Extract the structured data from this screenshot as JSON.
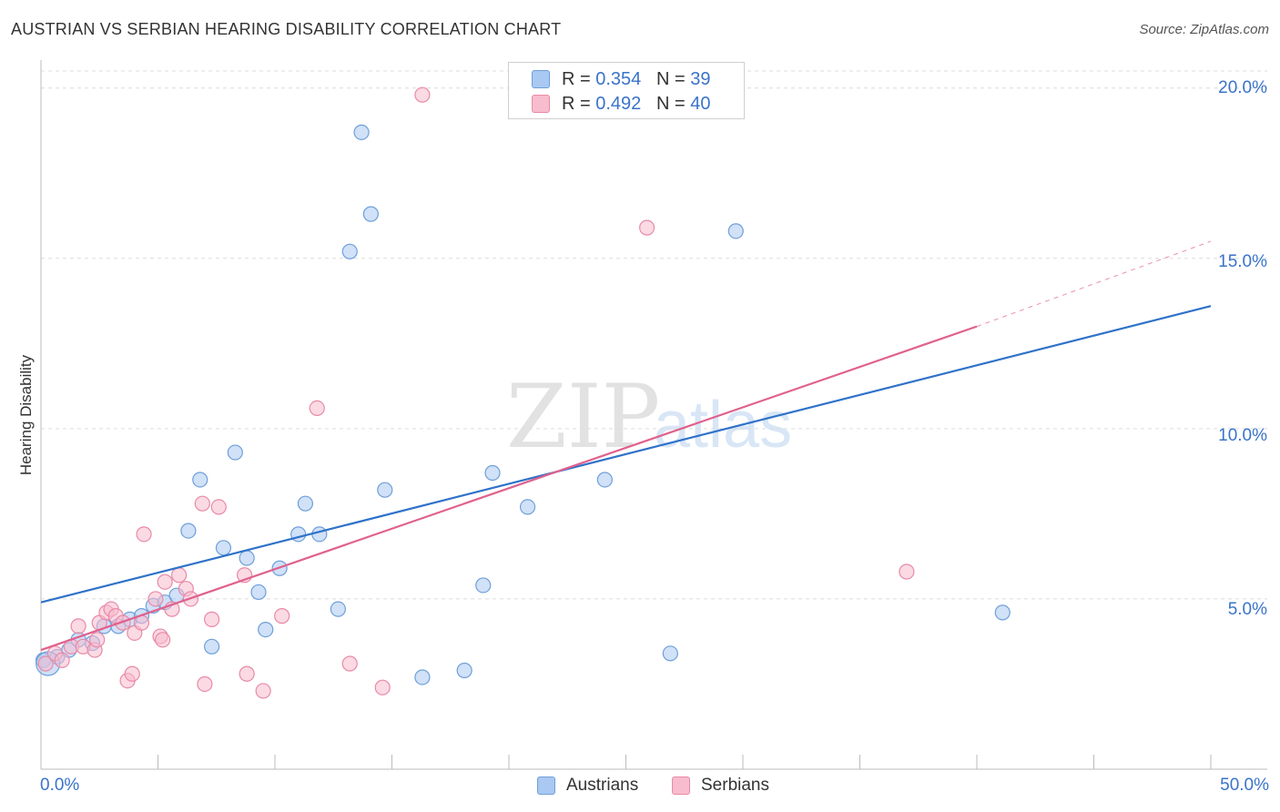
{
  "header": {
    "title": "AUSTRIAN VS SERBIAN HEARING DISABILITY CORRELATION CHART",
    "source": "Source: ZipAtlas.com"
  },
  "watermark": {
    "zip": "ZIP",
    "atlas": "atlas"
  },
  "legend": {
    "rows": [
      {
        "r_label": "R = ",
        "r_value": "0.354",
        "n_label": "N = ",
        "n_value": "39",
        "color": "#a9c8f2",
        "border": "#6f9fd8"
      },
      {
        "r_label": "R = ",
        "r_value": "0.492",
        "n_label": "N = ",
        "n_value": "40",
        "color": "#f7bccd",
        "border": "#e88aa7"
      }
    ]
  },
  "bottom_legend": {
    "austrians": "Austrians",
    "serbians": "Serbians"
  },
  "chart_data": {
    "type": "scatter",
    "title": "AUSTRIAN VS SERBIAN HEARING DISABILITY CORRELATION CHART",
    "xlabel": "",
    "ylabel": "Hearing Disability",
    "xlim": [
      0,
      50
    ],
    "ylim": [
      0,
      20.5
    ],
    "x_tick_labels": [
      "0.0%",
      "50.0%"
    ],
    "y_ticks": [
      5,
      10,
      15,
      20
    ],
    "y_tick_labels": [
      "5.0%",
      "10.0%",
      "15.0%",
      "20.0%"
    ],
    "grid": true,
    "series": [
      {
        "name": "Austrians",
        "color": "#6f9fd8",
        "fill": "#a9c8f2",
        "line_color": "#2f72c9",
        "trend": {
          "x0": 0,
          "y0": 4.9,
          "x1": 50,
          "y1": 13.6
        },
        "points": [
          [
            0.1,
            3.2
          ],
          [
            0.7,
            3.3
          ],
          [
            1.2,
            3.5
          ],
          [
            1.6,
            3.8
          ],
          [
            2.2,
            3.7
          ],
          [
            2.7,
            4.2
          ],
          [
            3.3,
            4.2
          ],
          [
            3.8,
            4.4
          ],
          [
            4.3,
            4.5
          ],
          [
            4.8,
            4.8
          ],
          [
            5.3,
            4.9
          ],
          [
            5.8,
            5.1
          ],
          [
            6.3,
            7.0
          ],
          [
            6.8,
            8.5
          ],
          [
            7.3,
            3.6
          ],
          [
            7.8,
            6.5
          ],
          [
            8.3,
            9.3
          ],
          [
            8.8,
            6.2
          ],
          [
            9.3,
            5.2
          ],
          [
            9.6,
            4.1
          ],
          [
            10.2,
            5.9
          ],
          [
            11.0,
            6.9
          ],
          [
            11.3,
            7.8
          ],
          [
            11.9,
            6.9
          ],
          [
            12.7,
            4.7
          ],
          [
            13.2,
            15.2
          ],
          [
            13.7,
            18.7
          ],
          [
            14.1,
            16.3
          ],
          [
            14.7,
            8.2
          ],
          [
            16.3,
            2.7
          ],
          [
            18.1,
            2.9
          ],
          [
            18.9,
            5.4
          ],
          [
            19.3,
            8.7
          ],
          [
            20.8,
            7.7
          ],
          [
            24.1,
            8.5
          ],
          [
            26.9,
            3.4
          ],
          [
            29.7,
            15.8
          ],
          [
            41.1,
            4.6
          ],
          [
            0.3,
            3.1
          ]
        ]
      },
      {
        "name": "Serbians",
        "color": "#e88aa7",
        "fill": "#f7bccd",
        "line_color": "#e0618d",
        "trend": {
          "x0": 0,
          "y0": 3.5,
          "x1": 40,
          "y1": 13.0
        },
        "trend_dashed_to": {
          "x": 50,
          "y": 15.5
        },
        "points": [
          [
            0.2,
            3.1
          ],
          [
            0.6,
            3.4
          ],
          [
            0.9,
            3.2
          ],
          [
            1.3,
            3.6
          ],
          [
            1.6,
            4.2
          ],
          [
            1.8,
            3.6
          ],
          [
            2.3,
            3.5
          ],
          [
            2.4,
            3.8
          ],
          [
            2.5,
            4.3
          ],
          [
            2.8,
            4.6
          ],
          [
            3.0,
            4.7
          ],
          [
            3.2,
            4.5
          ],
          [
            3.5,
            4.3
          ],
          [
            3.7,
            2.6
          ],
          [
            3.9,
            2.8
          ],
          [
            4.0,
            4.0
          ],
          [
            4.3,
            4.3
          ],
          [
            4.4,
            6.9
          ],
          [
            4.9,
            5.0
          ],
          [
            5.1,
            3.9
          ],
          [
            5.3,
            5.5
          ],
          [
            5.6,
            4.7
          ],
          [
            5.9,
            5.7
          ],
          [
            6.2,
            5.3
          ],
          [
            6.4,
            5.0
          ],
          [
            6.9,
            7.8
          ],
          [
            7.0,
            2.5
          ],
          [
            7.3,
            4.4
          ],
          [
            7.6,
            7.7
          ],
          [
            8.7,
            5.7
          ],
          [
            8.8,
            2.8
          ],
          [
            9.5,
            2.3
          ],
          [
            10.3,
            4.5
          ],
          [
            11.8,
            10.6
          ],
          [
            13.2,
            3.1
          ],
          [
            14.6,
            2.4
          ],
          [
            16.3,
            19.8
          ],
          [
            25.9,
            15.9
          ],
          [
            37.0,
            5.8
          ],
          [
            5.2,
            3.8
          ]
        ]
      }
    ]
  }
}
